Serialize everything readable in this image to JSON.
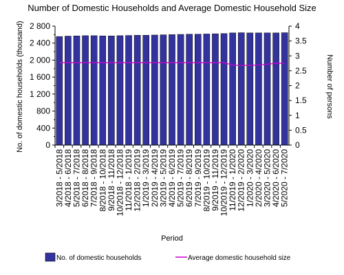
{
  "chart_data": {
    "type": "bar",
    "title": "Number of Domestic Households and Average Domestic Household Size",
    "xlabel": "Period",
    "ylabel": "No. of domestic households (thousand)",
    "y2label": "Number of persons",
    "ylim": [
      0,
      2800
    ],
    "y2lim": [
      0,
      4
    ],
    "yticks": [
      "0",
      "400",
      "800",
      "1 200",
      "1 600",
      "2 000",
      "2 400",
      "2 800"
    ],
    "y2ticks": [
      "0",
      "0.5",
      "1",
      "1.5",
      "2",
      "2.5",
      "3",
      "3.5",
      "4"
    ],
    "categories": [
      "3/2018 - 5/2018",
      "4/2018 - 6/2018",
      "5/2018 - 7/2018",
      "6/2018 - 8/2018",
      "7/2018 - 9/2018",
      "8/2018 - 10/2018",
      "9/2018 - 11/2018",
      "10/2018 - 12/2018",
      "11/2018 - 1/2019",
      "12/2018 - 2/2019",
      "1/2019 - 3/2019",
      "2/2019 - 4/2019",
      "3/2019 - 5/2019",
      "4/2019 - 6/2019",
      "5/2019 - 7/2019",
      "6/2019 - 8/2019",
      "7/2019 - 9/2019",
      "8/2019 - 10/2019",
      "9/2019 - 11/2019",
      "10/2019 - 12/2019",
      "11/2019 - 1/2020",
      "12/2019 - 2/2020",
      "1/2020 - 3/2020",
      "2/2020 - 4/2020",
      "3/2020 - 5/2020",
      "4/2020 - 6/2020",
      "5/2020 - 7/2020"
    ],
    "series": [
      {
        "name": "No. of domestic households",
        "kind": "bar",
        "axis": "left",
        "color": "#3333a0",
        "values": [
          2555,
          2565,
          2570,
          2575,
          2575,
          2570,
          2570,
          2575,
          2580,
          2585,
          2585,
          2590,
          2595,
          2600,
          2605,
          2610,
          2610,
          2615,
          2620,
          2625,
          2640,
          2645,
          2640,
          2640,
          2640,
          2640,
          2645
        ]
      },
      {
        "name": "Average domestic household size",
        "kind": "line",
        "axis": "right",
        "color": "#cc00cc",
        "values": [
          2.77,
          2.77,
          2.77,
          2.77,
          2.77,
          2.77,
          2.77,
          2.77,
          2.77,
          2.77,
          2.77,
          2.77,
          2.77,
          2.77,
          2.77,
          2.77,
          2.77,
          2.77,
          2.77,
          2.77,
          2.69,
          2.68,
          2.68,
          2.69,
          2.72,
          2.75,
          2.75
        ]
      }
    ],
    "legend": "bottom",
    "grid": false
  }
}
